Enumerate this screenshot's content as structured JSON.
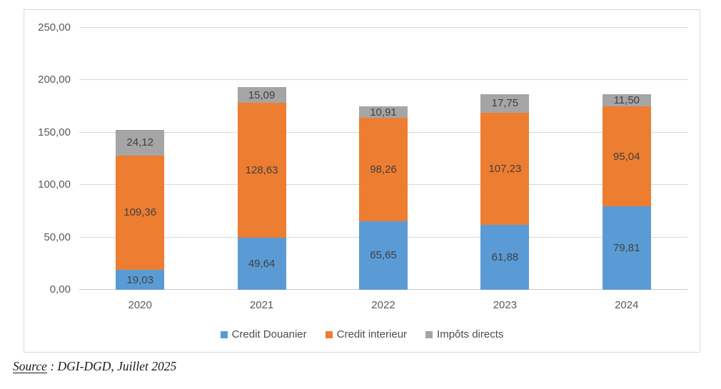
{
  "chart_data": {
    "type": "bar",
    "stacked": true,
    "title": "",
    "xlabel": "",
    "ylabel": "",
    "categories": [
      "2020",
      "2021",
      "2022",
      "2023",
      "2024"
    ],
    "series": [
      {
        "name": "Credit Douanier",
        "color": "#5B9BD5",
        "values": [
          19.03,
          49.64,
          65.65,
          61.88,
          79.81
        ],
        "labels": [
          "19,03",
          "49,64",
          "65,65",
          "61,88",
          "79,81"
        ]
      },
      {
        "name": "Credit interieur",
        "color": "#ED7D31",
        "values": [
          109.36,
          128.63,
          98.26,
          107.23,
          95.04
        ],
        "labels": [
          "109,36",
          "128,63",
          "98,26",
          "107,23",
          "95,04"
        ]
      },
      {
        "name": "Impôts directs",
        "color": "#A5A5A5",
        "values": [
          24.12,
          15.09,
          10.91,
          17.75,
          11.5
        ],
        "labels": [
          "24,12",
          "15,09",
          "10,91",
          "17,75",
          "11,50"
        ]
      }
    ],
    "ylim": [
      0,
      250
    ],
    "y_ticks": [
      0,
      50,
      100,
      150,
      200,
      250
    ],
    "y_tick_labels": [
      "0,00",
      "50,00",
      "100,00",
      "150,00",
      "200,00",
      "250,00"
    ],
    "grid": true,
    "legend_position": "bottom",
    "decimal_separator": ","
  },
  "source": {
    "label": "Source",
    "text": " : DGI-DGD, Juillet 2025"
  }
}
